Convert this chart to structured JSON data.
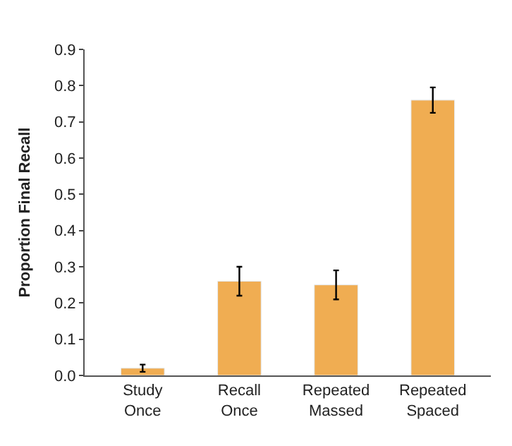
{
  "chart_data": {
    "type": "bar",
    "ylabel": "Proportion Final Recall",
    "categories": [
      "Study Once",
      "Recall Once",
      "Repeated Massed",
      "Repeated Spaced"
    ],
    "values": [
      0.02,
      0.26,
      0.25,
      0.76
    ],
    "errors": [
      0.01,
      0.04,
      0.04,
      0.035
    ],
    "color": "#f0ad52",
    "ylim": [
      0,
      0.9
    ],
    "yticks": [
      {
        "value": 0,
        "label": "0.0"
      },
      0.1,
      0.2,
      0.3,
      0.4,
      0.5,
      0.6,
      0.7,
      0.8,
      0.9
    ]
  }
}
